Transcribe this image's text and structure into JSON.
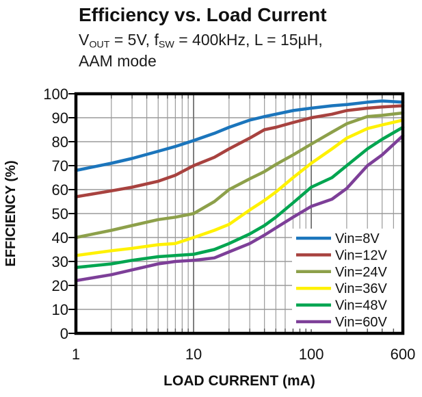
{
  "header": {
    "title": "Efficiency vs. Load Current",
    "subtitle_segments": [
      {
        "text": "V",
        "sub": false
      },
      {
        "text": "OUT",
        "sub": true
      },
      {
        "text": " = 5V, f",
        "sub": false
      },
      {
        "text": "SW",
        "sub": true
      },
      {
        "text": " = 400kHz, L = 15µH,",
        "sub": false
      }
    ],
    "subtitle_line2": "AAM mode"
  },
  "chart_data": {
    "type": "line",
    "title": "Efficiency vs. Load Current",
    "subtitle": "VOUT = 5V, fSW = 400kHz, L = 15µH, AAM mode",
    "xlabel": "LOAD CURRENT  (mA)",
    "ylabel": "EFFICIENCY  (%)",
    "x_scale": "log",
    "xlim": [
      1,
      600
    ],
    "ylim": [
      0,
      100
    ],
    "grid": true,
    "legend_position": "lower right",
    "x_ticks": [
      1,
      10,
      100,
      600
    ],
    "x_tick_labels": [
      "1",
      "10",
      "100",
      "600"
    ],
    "y_ticks": [
      0,
      10,
      20,
      30,
      40,
      50,
      60,
      70,
      80,
      90,
      100
    ],
    "y_tick_labels": [
      "0",
      "10",
      "20",
      "30",
      "40",
      "50",
      "60",
      "70",
      "80",
      "90",
      "100"
    ],
    "x": [
      1,
      2,
      3,
      5,
      7,
      10,
      15,
      20,
      30,
      40,
      50,
      70,
      100,
      150,
      200,
      300,
      400,
      600
    ],
    "series": [
      {
        "name": "Vin=8V",
        "color": "#1b75bc",
        "values": [
          68,
          71,
          73,
          76,
          78,
          80.5,
          83.5,
          86,
          89,
          90.5,
          91.5,
          93,
          94,
          95,
          95.5,
          96.5,
          97,
          96.5
        ]
      },
      {
        "name": "Vin=12V",
        "color": "#a8423f",
        "values": [
          57,
          59.5,
          61,
          63.5,
          66,
          70,
          73.5,
          77,
          81.5,
          85,
          86,
          88,
          90,
          91.5,
          93,
          94,
          94.5,
          95
        ]
      },
      {
        "name": "Vin=24V",
        "color": "#8da04a",
        "values": [
          40,
          43,
          45,
          47.5,
          48.5,
          50,
          55,
          60,
          64.5,
          67.5,
          70.5,
          74.5,
          79,
          84,
          87.5,
          90.5,
          91,
          92
        ]
      },
      {
        "name": "Vin=36V",
        "color": "#fff100",
        "values": [
          32.5,
          34.5,
          35.5,
          37,
          37.5,
          40,
          43,
          45.5,
          51.5,
          55.5,
          59,
          65,
          71,
          77,
          81.5,
          85.5,
          87,
          89
        ]
      },
      {
        "name": "Vin=48V",
        "color": "#00a550",
        "values": [
          27.5,
          29,
          30.5,
          32,
          32.5,
          33,
          35,
          37.5,
          41.5,
          45,
          48.5,
          54.5,
          61,
          65,
          70,
          77,
          81,
          86
        ]
      },
      {
        "name": "Vin=60V",
        "color": "#7d3f98",
        "values": [
          22,
          24.5,
          26.5,
          29,
          30,
          30.5,
          31.5,
          34,
          37.5,
          41,
          44,
          48.5,
          53,
          56,
          60.5,
          70,
          74.5,
          82.5
        ]
      }
    ],
    "colors": {
      "grid_minor": "#9a9a9a",
      "grid_major": "#707070",
      "plot_border": "#000000",
      "background": "#ffffff",
      "text": "#111111"
    }
  }
}
